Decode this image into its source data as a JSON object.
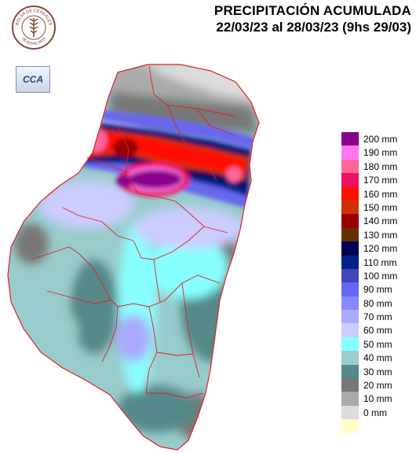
{
  "header": {
    "title": "PRECIPITACIÓN ACUMULADA",
    "subtitle": "22/03/23 al 28/03/23 (9hs 29/03)"
  },
  "logos": {
    "bolsa_name": "BOLSA DE CEREALES",
    "bolsa_region": "DE ENTRE RIOS",
    "cca_text": "CCA"
  },
  "legend": {
    "unit": "mm",
    "items": [
      {
        "label": "200 mm",
        "value": 200,
        "color": "#8b008b"
      },
      {
        "label": "190 mm",
        "value": 190,
        "color": "#ff77ee"
      },
      {
        "label": "180 mm",
        "value": 180,
        "color": "#ff6699"
      },
      {
        "label": "170 mm",
        "value": 170,
        "color": "#ee1166"
      },
      {
        "label": "160 mm",
        "value": 160,
        "color": "#ff1100"
      },
      {
        "label": "150 mm",
        "value": 150,
        "color": "#cc3300"
      },
      {
        "label": "140 mm",
        "value": 140,
        "color": "#990000"
      },
      {
        "label": "130 mm",
        "value": 130,
        "color": "#663300"
      },
      {
        "label": "120 mm",
        "value": 120,
        "color": "#000055"
      },
      {
        "label": "110 mm",
        "value": 110,
        "color": "#002288"
      },
      {
        "label": "100 mm",
        "value": 100,
        "color": "#4444bb"
      },
      {
        "label": "90 mm",
        "value": 90,
        "color": "#6666ee"
      },
      {
        "label": "80 mm",
        "value": 80,
        "color": "#8888ff"
      },
      {
        "label": "70 mm",
        "value": 70,
        "color": "#aaaaff"
      },
      {
        "label": "60 mm",
        "value": 60,
        "color": "#ccccff"
      },
      {
        "label": "50 mm",
        "value": 50,
        "color": "#88ffff"
      },
      {
        "label": "40 mm",
        "value": 40,
        "color": "#99cccc"
      },
      {
        "label": "30 mm",
        "value": 30,
        "color": "#558888"
      },
      {
        "label": "20 mm",
        "value": 20,
        "color": "#777777"
      },
      {
        "label": "10 mm",
        "value": 10,
        "color": "#aaaaaa"
      },
      {
        "label": "0 mm",
        "value": 0,
        "color": "#dddddd"
      }
    ],
    "extra_swatch_color": "#ffffcc"
  },
  "map": {
    "colors": {
      "c0": "#ffffcc",
      "c10": "#dddddd",
      "c20": "#aaaaaa",
      "c30": "#777777",
      "c40": "#558888",
      "c50": "#99cccc",
      "c60": "#88ffff",
      "c70": "#ccccff",
      "c80": "#aaaaff",
      "c90": "#8888ff",
      "c100": "#6666ee",
      "c110": "#4444bb",
      "c120": "#002288",
      "c130": "#000055",
      "c140": "#663300",
      "c150": "#990000",
      "c160": "#cc3300",
      "c170": "#ff1100",
      "c180": "#ee1166",
      "c190": "#ff6699",
      "c200": "#ff77ee",
      "cmax": "#8b008b",
      "border": "#e02020"
    }
  }
}
